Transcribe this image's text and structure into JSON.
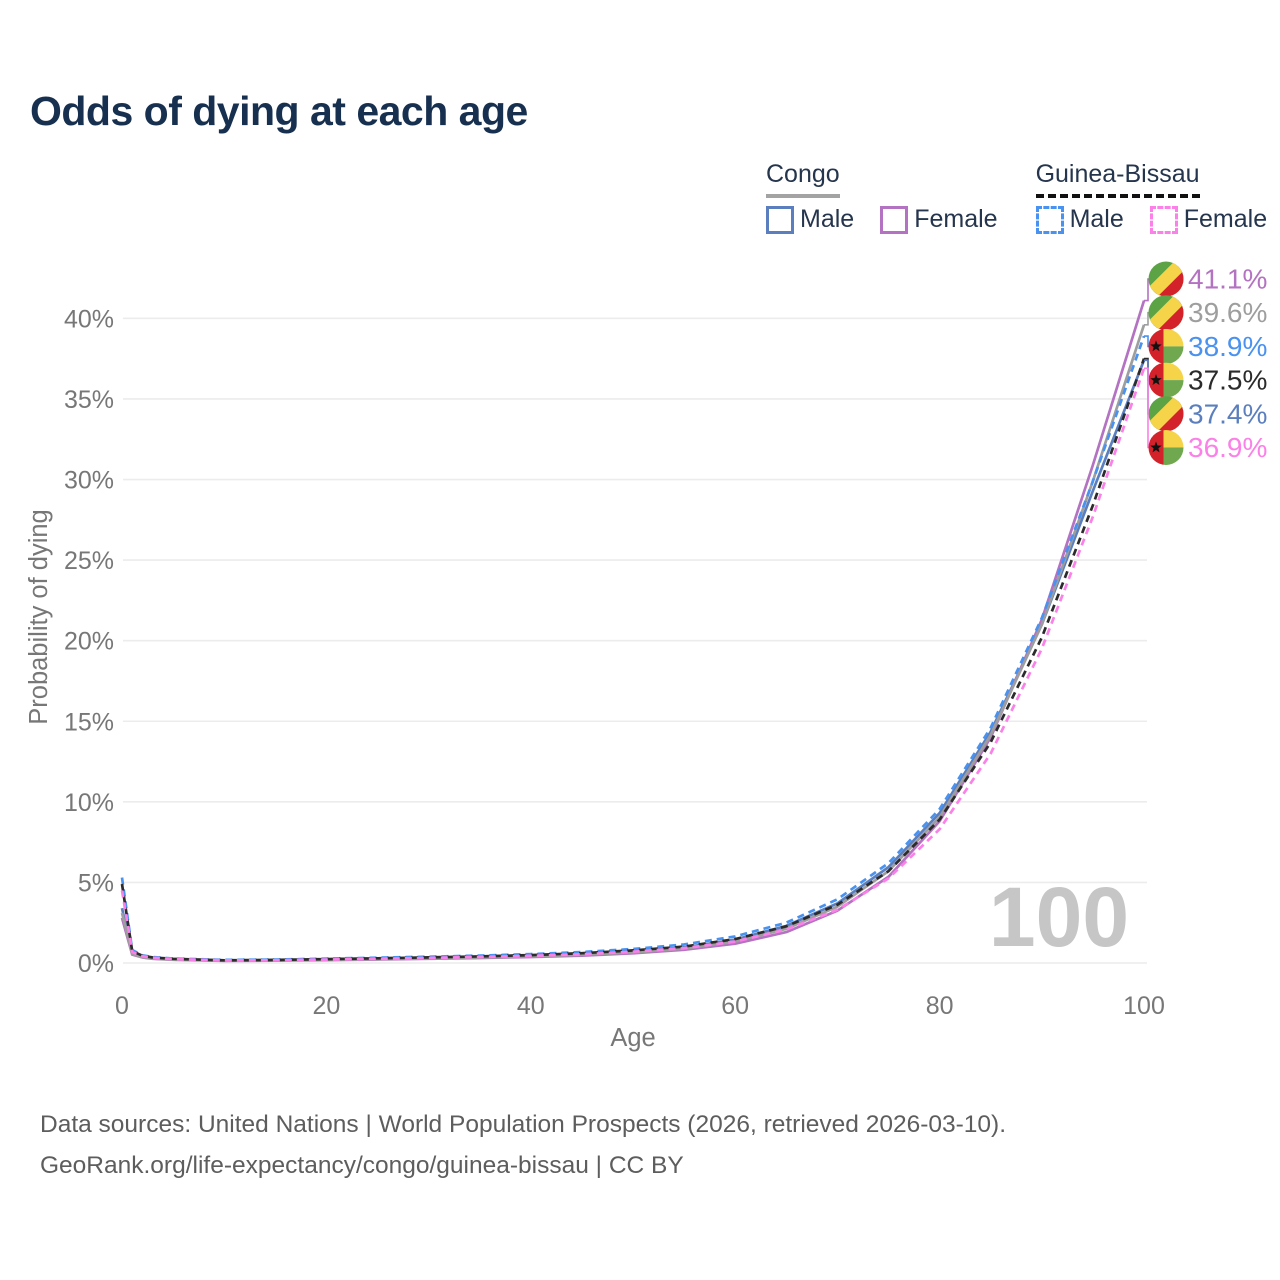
{
  "header": {
    "title": "Odds of dying at each age"
  },
  "legend": {
    "groups": [
      {
        "title": "Congo",
        "underline_style": "solid",
        "underline_color": "#a3a3a3",
        "items": [
          {
            "label": "Male",
            "color": "#5b7fbe",
            "dash": false
          },
          {
            "label": "Female",
            "color": "#b472c2",
            "dash": false
          }
        ]
      },
      {
        "title": "Guinea-Bissau",
        "underline_style": "dashed",
        "underline_color": "#111111",
        "items": [
          {
            "label": "Male",
            "color": "#4992f0",
            "dash": true
          },
          {
            "label": "Female",
            "color": "#fb80e8",
            "dash": true
          }
        ]
      }
    ]
  },
  "watermark": "100",
  "footer": {
    "line1": "Data sources: United Nations | World Population Prospects (2026, retrieved 2026-03-10).",
    "line2": "GeoRank.org/life-expectancy/congo/guinea-bissau | CC BY"
  },
  "chart_data": {
    "type": "line",
    "title": "Odds of dying at each age",
    "xlabel": "Age",
    "ylabel": "Probability of dying",
    "xlim": [
      0,
      100
    ],
    "ylim_percent": [
      0,
      43
    ],
    "x_ticks": [
      0,
      20,
      40,
      60,
      80,
      100
    ],
    "y_ticks_percent": [
      0,
      5,
      10,
      15,
      20,
      25,
      30,
      35,
      40
    ],
    "grid": "horizontal-only",
    "legend_position": "top-right",
    "ages": [
      0,
      1,
      2,
      3,
      5,
      10,
      15,
      20,
      25,
      30,
      35,
      40,
      45,
      50,
      55,
      60,
      65,
      70,
      75,
      80,
      85,
      90,
      95,
      100
    ],
    "series": [
      {
        "name": "Congo Male",
        "country": "Congo",
        "sex": "Male",
        "color": "#5b7fbe",
        "dash": false,
        "values_percent": [
          3.4,
          0.6,
          0.38,
          0.3,
          0.23,
          0.15,
          0.17,
          0.21,
          0.26,
          0.31,
          0.37,
          0.44,
          0.55,
          0.72,
          0.97,
          1.45,
          2.3,
          3.7,
          5.95,
          9.3,
          14.35,
          21.0,
          29.3,
          37.4
        ]
      },
      {
        "name": "Congo Female",
        "country": "Congo",
        "sex": "Female",
        "color": "#b472c2",
        "dash": false,
        "values_percent": [
          2.8,
          0.52,
          0.34,
          0.26,
          0.2,
          0.13,
          0.14,
          0.18,
          0.22,
          0.26,
          0.31,
          0.37,
          0.46,
          0.6,
          0.82,
          1.2,
          1.92,
          3.25,
          5.35,
          8.8,
          14.0,
          21.3,
          30.9,
          41.1
        ]
      },
      {
        "name": "Congo Both sexes",
        "country": "Congo",
        "sex": "Both",
        "color": "#9e9e9e",
        "dash": false,
        "values_percent": [
          3.1,
          0.56,
          0.36,
          0.28,
          0.21,
          0.14,
          0.16,
          0.2,
          0.24,
          0.29,
          0.34,
          0.41,
          0.51,
          0.66,
          0.9,
          1.33,
          2.12,
          3.5,
          5.7,
          9.05,
          14.15,
          21.0,
          29.9,
          39.6
        ]
      },
      {
        "name": "Guinea-Bissau Male",
        "country": "Guinea-Bissau",
        "sex": "Male",
        "color": "#4992f0",
        "dash": true,
        "values_percent": [
          5.3,
          0.8,
          0.48,
          0.37,
          0.28,
          0.19,
          0.21,
          0.27,
          0.33,
          0.39,
          0.46,
          0.55,
          0.68,
          0.87,
          1.15,
          1.65,
          2.5,
          3.95,
          6.2,
          9.55,
          14.6,
          21.4,
          29.9,
          38.9
        ]
      },
      {
        "name": "Guinea-Bissau Both sexes",
        "country": "Guinea-Bissau",
        "sex": "Both",
        "color": "#2b2b2b",
        "dash": true,
        "values_percent": [
          4.9,
          0.74,
          0.45,
          0.34,
          0.26,
          0.17,
          0.19,
          0.24,
          0.29,
          0.35,
          0.41,
          0.49,
          0.61,
          0.78,
          1.02,
          1.48,
          2.28,
          3.62,
          5.7,
          8.9,
          13.7,
          20.2,
          28.4,
          37.5
        ]
      },
      {
        "name": "Guinea-Bissau Female",
        "country": "Guinea-Bissau",
        "sex": "Female",
        "color": "#fb80e8",
        "dash": true,
        "values_percent": [
          4.5,
          0.68,
          0.42,
          0.32,
          0.24,
          0.16,
          0.17,
          0.21,
          0.26,
          0.31,
          0.37,
          0.44,
          0.54,
          0.7,
          0.92,
          1.33,
          2.07,
          3.3,
          5.25,
          8.3,
          13.0,
          19.5,
          27.7,
          36.9
        ]
      }
    ],
    "end_labels": [
      {
        "series": "Congo Female",
        "text": "41.1%",
        "flag": "congo",
        "color": "#b472c2"
      },
      {
        "series": "Congo Both sexes",
        "text": "39.6%",
        "flag": "congo",
        "color": "#9e9e9e"
      },
      {
        "series": "Guinea-Bissau Male",
        "text": "38.9%",
        "flag": "gb",
        "color": "#4992f0"
      },
      {
        "series": "Guinea-Bissau Both sexes",
        "text": "37.5%",
        "flag": "gb",
        "color": "#2b2b2b"
      },
      {
        "series": "Congo Male",
        "text": "37.4%",
        "flag": "congo",
        "color": "#5b7fbe"
      },
      {
        "series": "Guinea-Bissau Female",
        "text": "36.9%",
        "flag": "gb",
        "color": "#fb80e8"
      }
    ],
    "flag_colors": {
      "congo": {
        "green": "#5ba345",
        "yellow": "#f6d44a",
        "red": "#d3222a"
      },
      "gb": {
        "red": "#d3222a",
        "yellow": "#f6d44a",
        "green": "#6fa84f",
        "star": "#111111"
      }
    }
  }
}
